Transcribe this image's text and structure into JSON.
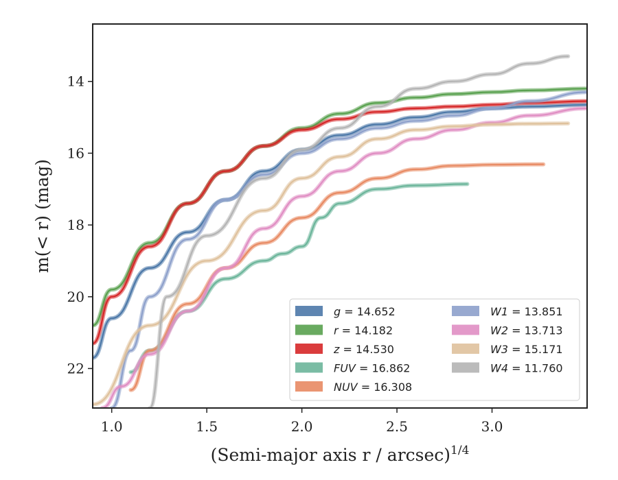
{
  "chart_data": {
    "type": "line",
    "title": "",
    "xlabel": "(Semi-major axis r / arcsec)",
    "xlabel_superscript": "1/4",
    "ylabel": "m(< r) (mag)",
    "xlim": [
      0.9,
      3.5
    ],
    "ylim": [
      23.1,
      12.4
    ],
    "y_inverted": true,
    "x_ticks": [
      "1.0",
      "1.5",
      "2.0",
      "2.5",
      "3.0"
    ],
    "y_ticks": [
      "14",
      "16",
      "18",
      "20",
      "22"
    ],
    "grid": false,
    "legend_position": "lower-right",
    "series": [
      {
        "name": "g",
        "value": "14.652",
        "color": "#4c78a8",
        "x": [
          0.9,
          1.0,
          1.2,
          1.4,
          1.6,
          1.8,
          2.0,
          2.2,
          2.4,
          2.6,
          2.8,
          3.0,
          3.2,
          3.5
        ],
        "y": [
          21.7,
          20.6,
          19.2,
          18.2,
          17.3,
          16.5,
          15.9,
          15.5,
          15.2,
          15.0,
          14.85,
          14.75,
          14.7,
          14.65
        ]
      },
      {
        "name": "r",
        "value": "14.182",
        "color": "#59a14f",
        "x": [
          0.9,
          1.0,
          1.2,
          1.4,
          1.6,
          1.8,
          2.0,
          2.2,
          2.4,
          2.6,
          2.8,
          3.0,
          3.2,
          3.5
        ],
        "y": [
          20.8,
          19.8,
          18.5,
          17.4,
          16.5,
          15.8,
          15.3,
          14.9,
          14.6,
          14.45,
          14.35,
          14.3,
          14.25,
          14.2
        ]
      },
      {
        "name": "z",
        "value": "14.530",
        "color": "#d62728",
        "x": [
          0.9,
          1.0,
          1.2,
          1.4,
          1.6,
          1.8,
          2.0,
          2.2,
          2.4,
          2.6,
          2.8,
          3.0,
          3.2,
          3.5
        ],
        "y": [
          21.3,
          20.0,
          18.6,
          17.4,
          16.5,
          15.8,
          15.35,
          15.05,
          14.85,
          14.75,
          14.7,
          14.65,
          14.6,
          14.55
        ]
      },
      {
        "name": "FUV",
        "value": "16.862",
        "color": "#6bb59a",
        "x": [
          1.1,
          1.2,
          1.4,
          1.6,
          1.8,
          1.9,
          2.0,
          2.1,
          2.2,
          2.4,
          2.6,
          2.87
        ],
        "y": [
          22.1,
          21.5,
          20.4,
          19.5,
          19.0,
          18.8,
          18.6,
          17.8,
          17.4,
          17.0,
          16.9,
          16.86
        ]
      },
      {
        "name": "NUV",
        "value": "16.308",
        "color": "#e88a63",
        "x": [
          1.1,
          1.2,
          1.4,
          1.6,
          1.8,
          2.0,
          2.2,
          2.4,
          2.6,
          2.8,
          3.0,
          3.27
        ],
        "y": [
          22.6,
          21.5,
          20.2,
          19.2,
          18.5,
          17.8,
          17.1,
          16.7,
          16.45,
          16.35,
          16.32,
          16.31
        ]
      },
      {
        "name": "W1",
        "value": "13.851",
        "color": "#8da0cb",
        "x": [
          1.0,
          1.1,
          1.2,
          1.4,
          1.6,
          1.8,
          2.0,
          2.2,
          2.4,
          2.6,
          2.8,
          3.0,
          3.2,
          3.5
        ],
        "y": [
          23.1,
          21.5,
          20.0,
          18.4,
          17.3,
          16.6,
          16.0,
          15.6,
          15.3,
          15.1,
          14.95,
          14.75,
          14.55,
          14.3
        ]
      },
      {
        "name": "W2",
        "value": "13.713",
        "color": "#e08ec3",
        "x": [
          0.95,
          1.05,
          1.2,
          1.4,
          1.6,
          1.8,
          2.0,
          2.2,
          2.4,
          2.6,
          2.8,
          3.0,
          3.2,
          3.5
        ],
        "y": [
          23.1,
          22.5,
          21.6,
          20.4,
          19.2,
          18.1,
          17.2,
          16.5,
          16.0,
          15.6,
          15.35,
          15.15,
          14.95,
          14.75
        ]
      },
      {
        "name": "W3",
        "value": "15.171",
        "color": "#dfc19c",
        "x": [
          0.9,
          1.2,
          1.5,
          1.8,
          2.0,
          2.2,
          2.4,
          2.6,
          2.8,
          3.0,
          3.2,
          3.4
        ],
        "y": [
          23.0,
          20.8,
          19.0,
          17.6,
          16.7,
          16.1,
          15.6,
          15.35,
          15.25,
          15.2,
          15.18,
          15.17
        ]
      },
      {
        "name": "W4",
        "value": "11.760",
        "color": "#b4b4b4",
        "x": [
          1.2,
          1.29,
          1.5,
          1.8,
          2.0,
          2.2,
          2.4,
          2.6,
          2.8,
          3.0,
          3.2,
          3.4
        ],
        "y": [
          23.1,
          20.0,
          18.3,
          16.7,
          15.9,
          15.3,
          14.7,
          14.2,
          14.0,
          13.8,
          13.5,
          13.3
        ]
      }
    ],
    "legend_columns": [
      [
        "g",
        "r",
        "z",
        "FUV",
        "NUV"
      ],
      [
        "W1",
        "W2",
        "W3",
        "W4"
      ]
    ]
  }
}
